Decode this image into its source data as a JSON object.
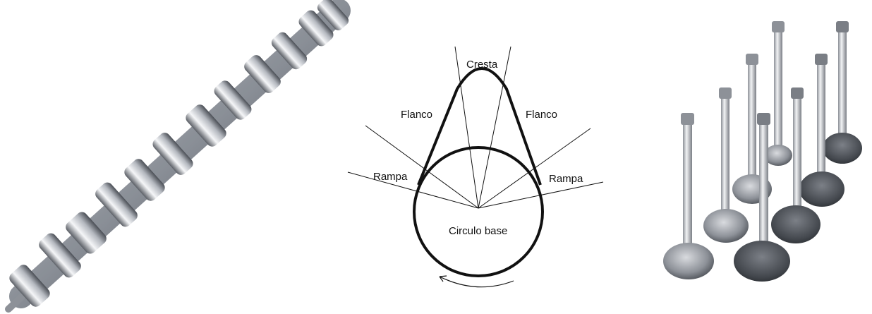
{
  "diagram": {
    "labels": {
      "cresta": "Cresta",
      "flanco_left": "Flanco",
      "flanco_right": "Flanco",
      "rampa_left": "Rampa",
      "rampa_right": "Rampa",
      "circulo_base": "Circulo base"
    }
  },
  "colors": {
    "outline": "#111111",
    "steel_light": "#e8eaee",
    "steel_dark": "#5b5f66"
  }
}
